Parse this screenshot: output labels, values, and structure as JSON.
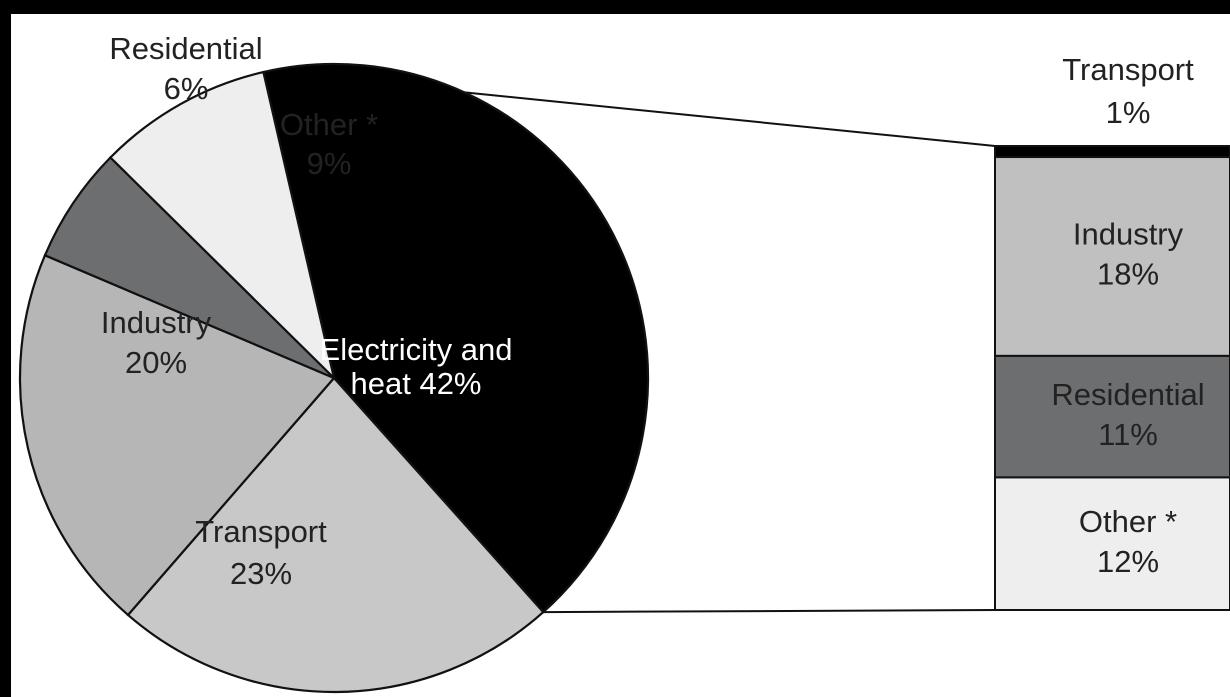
{
  "chart_data": [
    {
      "type": "pie",
      "categories": [
        "Electricity and heat",
        "Transport",
        "Industry",
        "Residential",
        "Other *"
      ],
      "values": [
        42,
        23,
        20,
        6,
        9
      ],
      "labels": [
        {
          "line1": "Electricity and",
          "line2": "heat  42%"
        },
        {
          "line1": "Transport",
          "line2": "23%"
        },
        {
          "line1": "Industry",
          "line2": "20%"
        },
        {
          "line1": "Residential",
          "line2": "6%"
        },
        {
          "line1": "Other *",
          "line2": "9%"
        }
      ],
      "colors": [
        "#000000",
        "#c8c8c8",
        "#b6b6b6",
        "#6d6e70",
        "#eeeeee"
      ],
      "label_colors": [
        "#ffffff",
        "#222222",
        "#222222",
        "#222222",
        "#222222"
      ]
    },
    {
      "type": "bar",
      "stacked": true,
      "breakdown_of": "Electricity and heat",
      "categories": [
        "Transport",
        "Industry",
        "Residential",
        "Other *"
      ],
      "values": [
        1,
        18,
        11,
        12
      ],
      "labels": [
        {
          "line1": "Transport",
          "line2": "1%"
        },
        {
          "line1": "Industry",
          "line2": "18%"
        },
        {
          "line1": "Residential",
          "line2": "11%"
        },
        {
          "line1": "Other *",
          "line2": "12%"
        }
      ],
      "colors": [
        "#000000",
        "#c0c0c0",
        "#6d6e70",
        "#eeeeee"
      ]
    }
  ]
}
